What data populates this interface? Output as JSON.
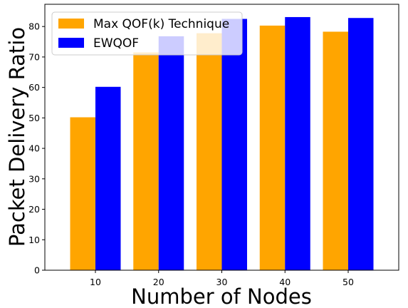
{
  "chart_data": {
    "type": "bar",
    "title": "",
    "xlabel": "Number of Nodes",
    "ylabel": "Packet Delivery Ratio",
    "categories": [
      "10",
      "20",
      "30",
      "40",
      "50"
    ],
    "series": [
      {
        "name": "Max QOF(k) Technique",
        "color": "#ffa500",
        "values": [
          50.2,
          71.5,
          77.8,
          80.3,
          78.3
        ]
      },
      {
        "name": "EWQOF",
        "color": "#0000ff",
        "values": [
          60.2,
          76.8,
          82.5,
          83.1,
          82.8
        ]
      }
    ],
    "yticks": [
      "0",
      "10",
      "20",
      "30",
      "40",
      "50",
      "60",
      "70",
      "80"
    ],
    "ylim": [
      0,
      87.3
    ],
    "legend_position": "top-left",
    "grid": false
  }
}
